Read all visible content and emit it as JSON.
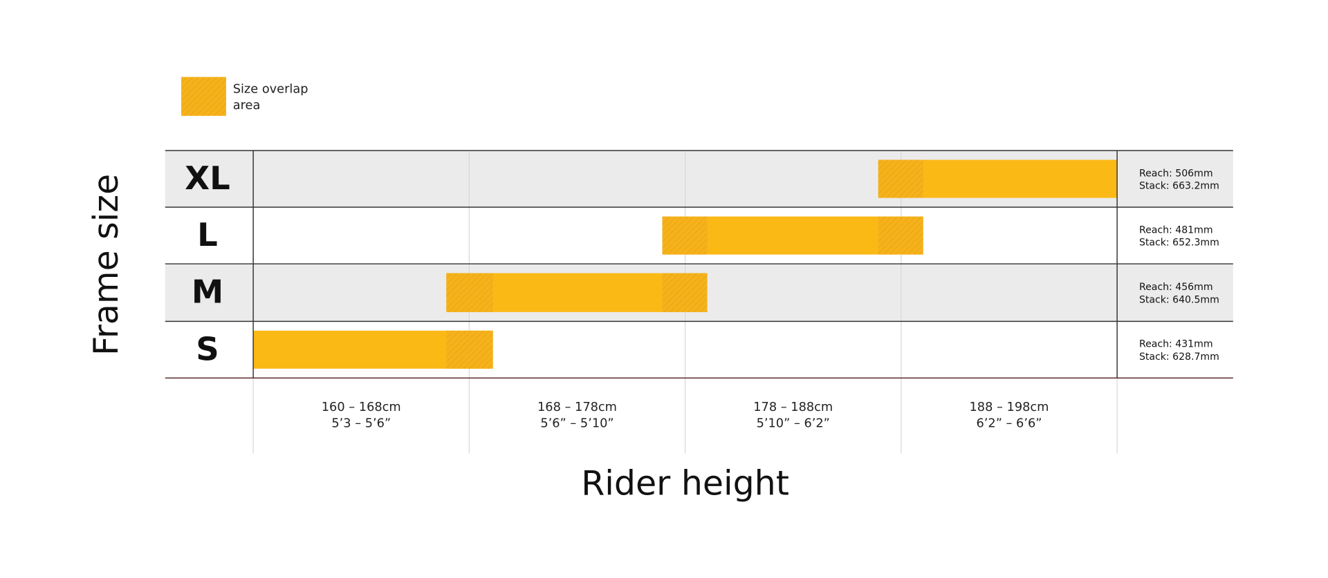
{
  "legend": {
    "lines": [
      "Size overlap",
      "area"
    ]
  },
  "y_axis_title": "Frame size",
  "x_axis_title": "Rider height",
  "sizes": [
    {
      "label": "XL",
      "reach": "Reach: 506mm",
      "stack": "Stack: 663.2mm"
    },
    {
      "label": "L",
      "reach": "Reach: 481mm",
      "stack": "Stack: 652.3mm"
    },
    {
      "label": "M",
      "reach": "Reach: 456mm",
      "stack": "Stack: 640.5mm"
    },
    {
      "label": "S",
      "reach": "Reach: 431mm",
      "stack": "Stack: 628.7mm"
    }
  ],
  "columns": [
    {
      "cm": "160 – 168cm",
      "ft": "5’3 – 5’6”"
    },
    {
      "cm": "168 – 178cm",
      "ft": "5’6” – 5’10”"
    },
    {
      "cm": "178 – 188cm",
      "ft": "5’10” – 6’2”"
    },
    {
      "cm": "188 – 198cm",
      "ft": "6’2” – 6’6”"
    }
  ]
}
